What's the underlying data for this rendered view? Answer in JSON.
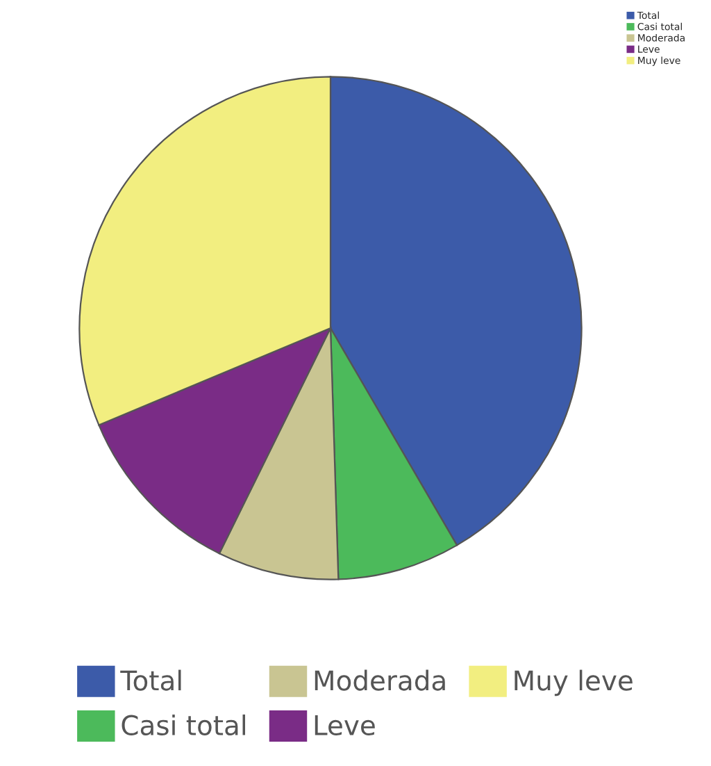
{
  "chart_data": {
    "type": "pie",
    "categories": [
      "Total",
      "Casi total",
      "Moderada",
      "Leve",
      "Muy leve"
    ],
    "values": [
      41.6,
      7.9,
      7.8,
      11.4,
      31.3
    ],
    "colors": [
      "#3c5ba9",
      "#4cba5b",
      "#c9c592",
      "#7a2c86",
      "#f2ee80"
    ],
    "legend": "bottom"
  }
}
